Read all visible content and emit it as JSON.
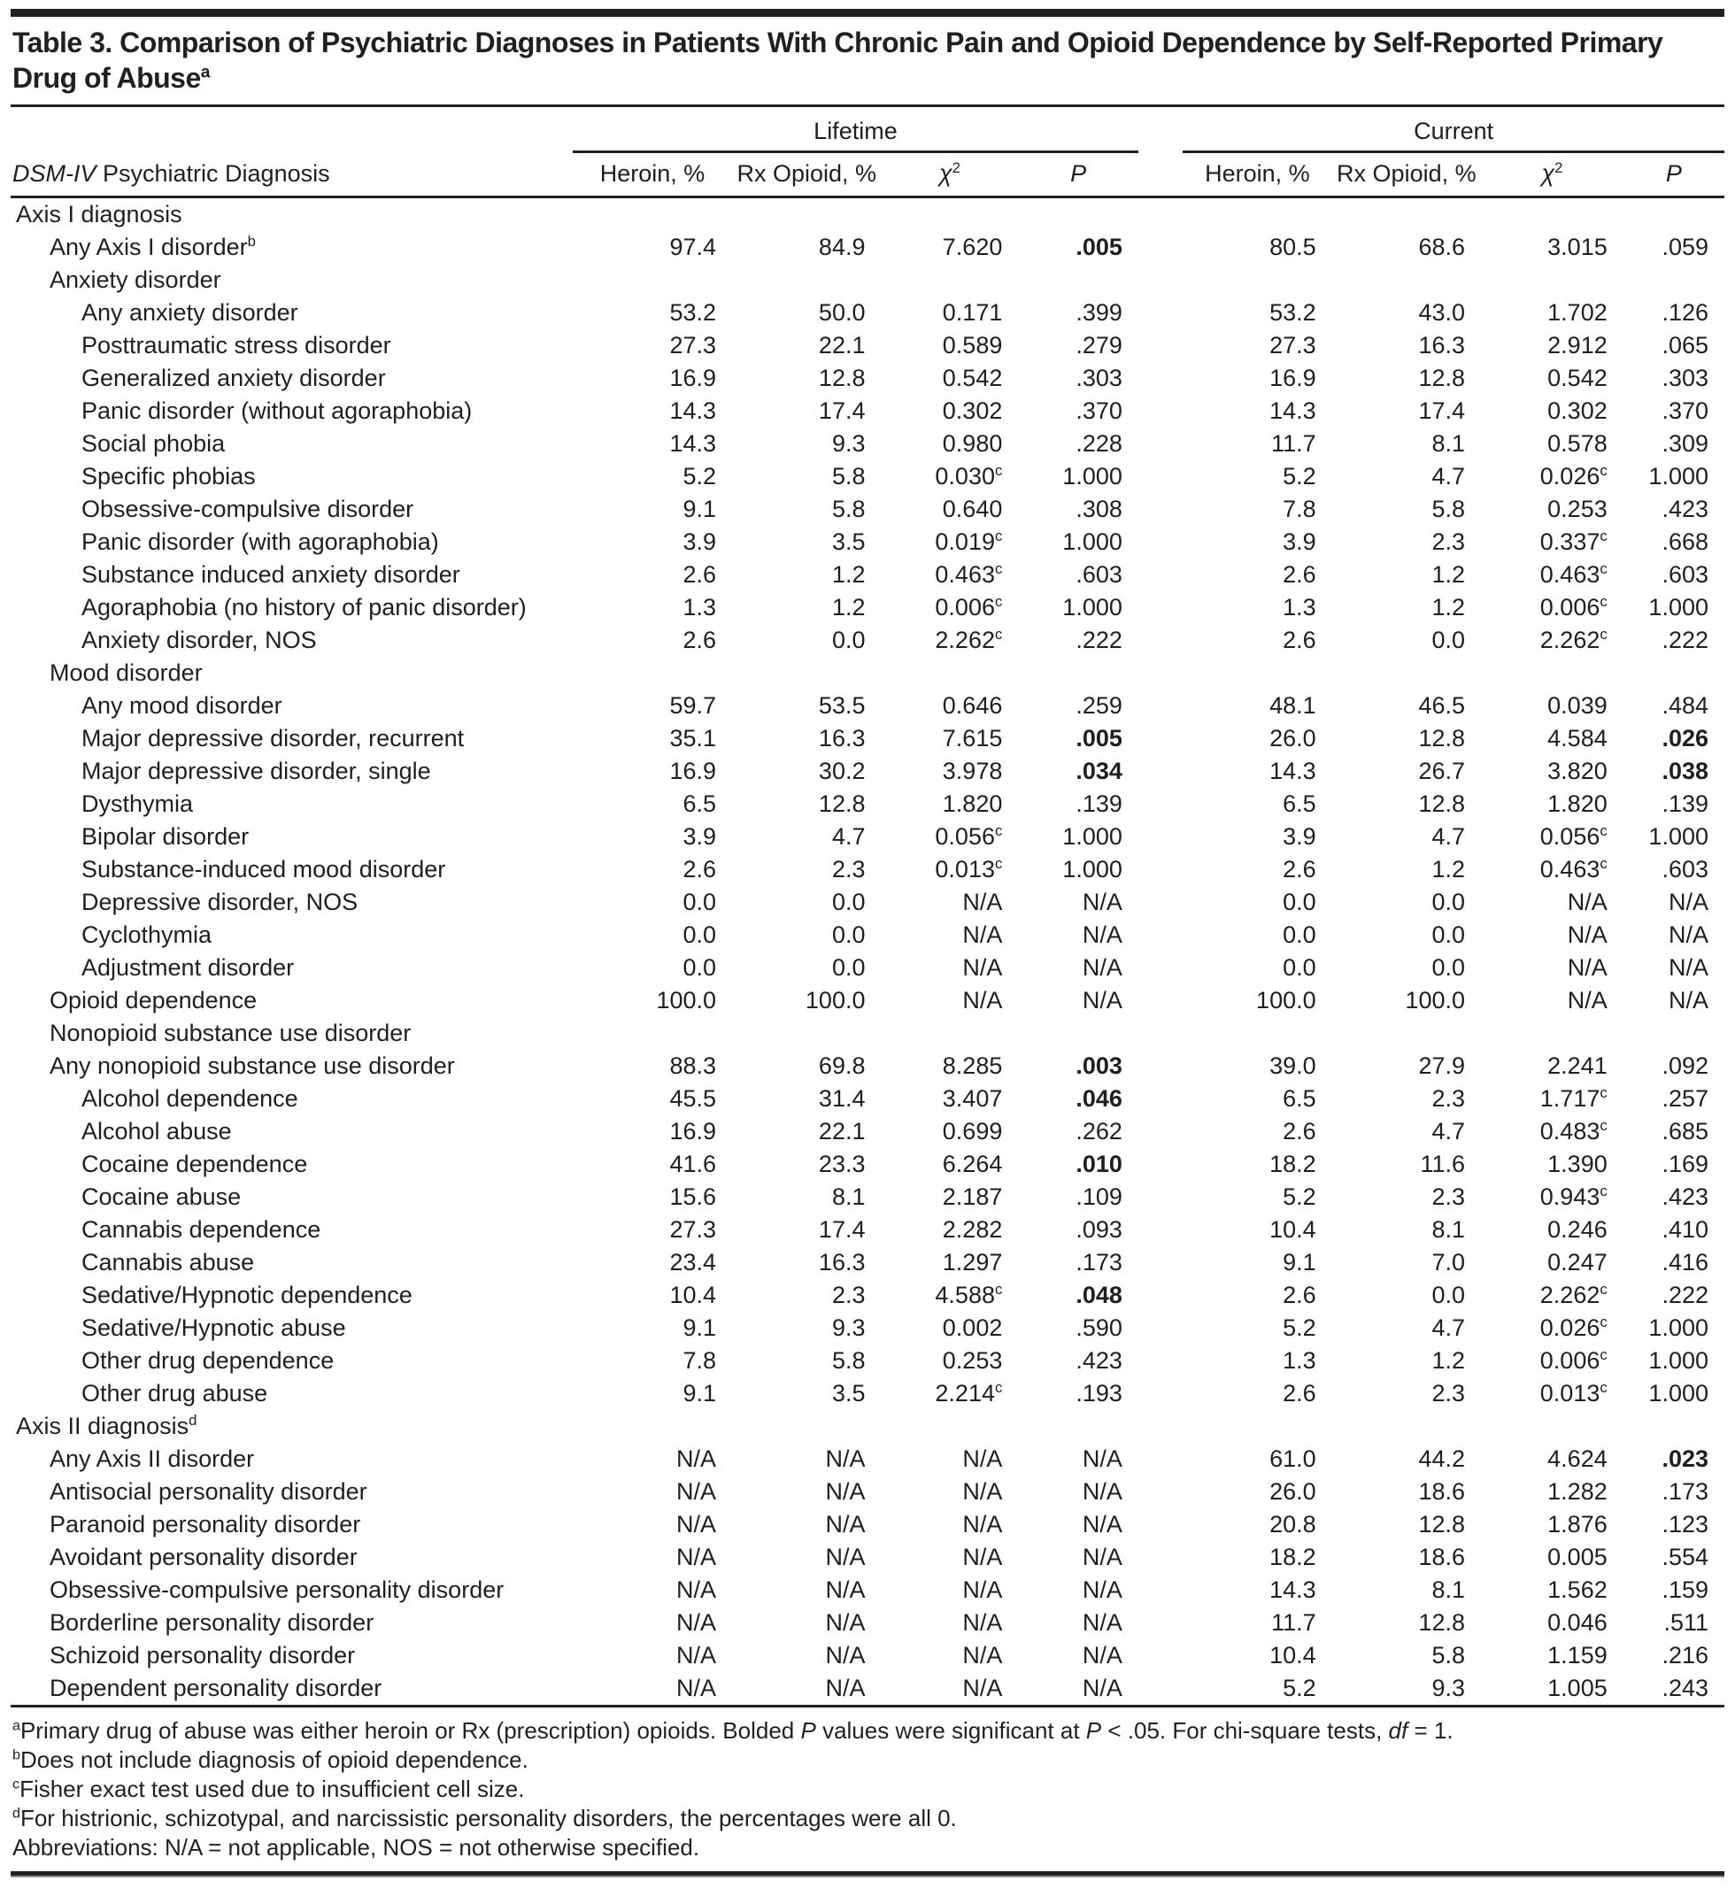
{
  "title": "Table 3. Comparison of Psychiatric Diagnoses in Patients With Chronic Pain and Opioid Dependence by Self-Reported Primary Drug of Abuse^a^",
  "header": {
    "diagnosis_col": "*DSM-IV* Psychiatric Diagnosis",
    "groups": [
      {
        "label": "Lifetime"
      },
      {
        "label": "Current"
      }
    ],
    "subcolumns": [
      "Heroin, %",
      "Rx Opioid, %",
      "*χ*^2^",
      "*P*"
    ]
  },
  "rows": [
    {
      "label": "Axis I diagnosis",
      "indent": 0,
      "cells": [
        "",
        "",
        "",
        "",
        "",
        "",
        "",
        ""
      ]
    },
    {
      "label": "Any Axis I disorder^b^",
      "indent": 1,
      "cells": [
        "97.4",
        "84.9",
        "7.620",
        "**.005**",
        "80.5",
        "68.6",
        "3.015",
        ".059"
      ]
    },
    {
      "label": "Anxiety disorder",
      "indent": 1,
      "cells": [
        "",
        "",
        "",
        "",
        "",
        "",
        "",
        ""
      ]
    },
    {
      "label": "Any anxiety disorder",
      "indent": 2,
      "cells": [
        "53.2",
        "50.0",
        "0.171",
        ".399",
        "53.2",
        "43.0",
        "1.702",
        ".126"
      ]
    },
    {
      "label": "Posttraumatic stress disorder",
      "indent": 2,
      "cells": [
        "27.3",
        "22.1",
        "0.589",
        ".279",
        "27.3",
        "16.3",
        "2.912",
        ".065"
      ]
    },
    {
      "label": "Generalized anxiety disorder",
      "indent": 2,
      "cells": [
        "16.9",
        "12.8",
        "0.542",
        ".303",
        "16.9",
        "12.8",
        "0.542",
        ".303"
      ]
    },
    {
      "label": "Panic disorder (without agoraphobia)",
      "indent": 2,
      "cells": [
        "14.3",
        "17.4",
        "0.302",
        ".370",
        "14.3",
        "17.4",
        "0.302",
        ".370"
      ]
    },
    {
      "label": "Social phobia",
      "indent": 2,
      "cells": [
        "14.3",
        "9.3",
        "0.980",
        ".228",
        "11.7",
        "8.1",
        "0.578",
        ".309"
      ]
    },
    {
      "label": "Specific phobias",
      "indent": 2,
      "cells": [
        "5.2",
        "5.8",
        "0.030^c^",
        "1.000",
        "5.2",
        "4.7",
        "0.026^c^",
        "1.000"
      ]
    },
    {
      "label": "Obsessive-compulsive disorder",
      "indent": 2,
      "cells": [
        "9.1",
        "5.8",
        "0.640",
        ".308",
        "7.8",
        "5.8",
        "0.253",
        ".423"
      ]
    },
    {
      "label": "Panic disorder (with agoraphobia)",
      "indent": 2,
      "cells": [
        "3.9",
        "3.5",
        "0.019^c^",
        "1.000",
        "3.9",
        "2.3",
        "0.337^c^",
        ".668"
      ]
    },
    {
      "label": "Substance induced anxiety disorder",
      "indent": 2,
      "cells": [
        "2.6",
        "1.2",
        "0.463^c^",
        ".603",
        "2.6",
        "1.2",
        "0.463^c^",
        ".603"
      ]
    },
    {
      "label": "Agoraphobia (no history of panic disorder)",
      "indent": 2,
      "cells": [
        "1.3",
        "1.2",
        "0.006^c^",
        "1.000",
        "1.3",
        "1.2",
        "0.006^c^",
        "1.000"
      ]
    },
    {
      "label": "Anxiety disorder, NOS",
      "indent": 2,
      "cells": [
        "2.6",
        "0.0",
        "2.262^c^",
        ".222",
        "2.6",
        "0.0",
        "2.262^c^",
        ".222"
      ]
    },
    {
      "label": "Mood disorder",
      "indent": 1,
      "cells": [
        "",
        "",
        "",
        "",
        "",
        "",
        "",
        ""
      ]
    },
    {
      "label": "Any mood disorder",
      "indent": 2,
      "cells": [
        "59.7",
        "53.5",
        "0.646",
        ".259",
        "48.1",
        "46.5",
        "0.039",
        ".484"
      ]
    },
    {
      "label": "Major depressive disorder, recurrent",
      "indent": 2,
      "cells": [
        "35.1",
        "16.3",
        "7.615",
        "**.005**",
        "26.0",
        "12.8",
        "4.584",
        "**.026**"
      ]
    },
    {
      "label": "Major depressive disorder, single",
      "indent": 2,
      "cells": [
        "16.9",
        "30.2",
        "3.978",
        "**.034**",
        "14.3",
        "26.7",
        "3.820",
        "**.038**"
      ]
    },
    {
      "label": "Dysthymia",
      "indent": 2,
      "cells": [
        "6.5",
        "12.8",
        "1.820",
        ".139",
        "6.5",
        "12.8",
        "1.820",
        ".139"
      ]
    },
    {
      "label": "Bipolar disorder",
      "indent": 2,
      "cells": [
        "3.9",
        "4.7",
        "0.056^c^",
        "1.000",
        "3.9",
        "4.7",
        "0.056^c^",
        "1.000"
      ]
    },
    {
      "label": "Substance-induced mood disorder",
      "indent": 2,
      "cells": [
        "2.6",
        "2.3",
        "0.013^c^",
        "1.000",
        "2.6",
        "1.2",
        "0.463^c^",
        ".603"
      ]
    },
    {
      "label": "Depressive disorder, NOS",
      "indent": 2,
      "cells": [
        "0.0",
        "0.0",
        "N/A",
        "N/A",
        "0.0",
        "0.0",
        "N/A",
        "N/A"
      ]
    },
    {
      "label": "Cyclothymia",
      "indent": 2,
      "cells": [
        "0.0",
        "0.0",
        "N/A",
        "N/A",
        "0.0",
        "0.0",
        "N/A",
        "N/A"
      ]
    },
    {
      "label": "Adjustment disorder",
      "indent": 2,
      "cells": [
        "0.0",
        "0.0",
        "N/A",
        "N/A",
        "0.0",
        "0.0",
        "N/A",
        "N/A"
      ]
    },
    {
      "label": "Opioid dependence",
      "indent": 1,
      "cells": [
        "100.0",
        "100.0",
        "N/A",
        "N/A",
        "100.0",
        "100.0",
        "N/A",
        "N/A"
      ]
    },
    {
      "label": "Nonopioid substance use disorder",
      "indent": 1,
      "cells": [
        "",
        "",
        "",
        "",
        "",
        "",
        "",
        ""
      ]
    },
    {
      "label": "Any nonopioid substance use disorder",
      "indent": 1,
      "cells": [
        "88.3",
        "69.8",
        "8.285",
        "**.003**",
        "39.0",
        "27.9",
        "2.241",
        ".092"
      ]
    },
    {
      "label": "Alcohol dependence",
      "indent": 2,
      "cells": [
        "45.5",
        "31.4",
        "3.407",
        "**.046**",
        "6.5",
        "2.3",
        "1.717^c^",
        ".257"
      ]
    },
    {
      "label": "Alcohol abuse",
      "indent": 2,
      "cells": [
        "16.9",
        "22.1",
        "0.699",
        ".262",
        "2.6",
        "4.7",
        "0.483^c^",
        ".685"
      ]
    },
    {
      "label": "Cocaine dependence",
      "indent": 2,
      "cells": [
        "41.6",
        "23.3",
        "6.264",
        "**.010**",
        "18.2",
        "11.6",
        "1.390",
        ".169"
      ]
    },
    {
      "label": "Cocaine abuse",
      "indent": 2,
      "cells": [
        "15.6",
        "8.1",
        "2.187",
        ".109",
        "5.2",
        "2.3",
        "0.943^c^",
        ".423"
      ]
    },
    {
      "label": "Cannabis dependence",
      "indent": 2,
      "cells": [
        "27.3",
        "17.4",
        "2.282",
        ".093",
        "10.4",
        "8.1",
        "0.246",
        ".410"
      ]
    },
    {
      "label": "Cannabis abuse",
      "indent": 2,
      "cells": [
        "23.4",
        "16.3",
        "1.297",
        ".173",
        "9.1",
        "7.0",
        "0.247",
        ".416"
      ]
    },
    {
      "label": "Sedative/Hypnotic dependence",
      "indent": 2,
      "cells": [
        "10.4",
        "2.3",
        "4.588^c^",
        "**.048**",
        "2.6",
        "0.0",
        "2.262^c^",
        ".222"
      ]
    },
    {
      "label": "Sedative/Hypnotic abuse",
      "indent": 2,
      "cells": [
        "9.1",
        "9.3",
        "0.002",
        ".590",
        "5.2",
        "4.7",
        "0.026^c^",
        "1.000"
      ]
    },
    {
      "label": "Other drug dependence",
      "indent": 2,
      "cells": [
        "7.8",
        "5.8",
        "0.253",
        ".423",
        "1.3",
        "1.2",
        "0.006^c^",
        "1.000"
      ]
    },
    {
      "label": "Other drug abuse",
      "indent": 2,
      "cells": [
        "9.1",
        "3.5",
        "2.214^c^",
        ".193",
        "2.6",
        "2.3",
        "0.013^c^",
        "1.000"
      ]
    },
    {
      "label": "Axis II diagnosis^d^",
      "indent": 0,
      "cells": [
        "",
        "",
        "",
        "",
        "",
        "",
        "",
        ""
      ]
    },
    {
      "label": "Any Axis II disorder",
      "indent": 1,
      "cells": [
        "N/A",
        "N/A",
        "N/A",
        "N/A",
        "61.0",
        "44.2",
        "4.624",
        "**.023**"
      ]
    },
    {
      "label": "Antisocial personality disorder",
      "indent": 1,
      "cells": [
        "N/A",
        "N/A",
        "N/A",
        "N/A",
        "26.0",
        "18.6",
        "1.282",
        ".173"
      ]
    },
    {
      "label": "Paranoid personality disorder",
      "indent": 1,
      "cells": [
        "N/A",
        "N/A",
        "N/A",
        "N/A",
        "20.8",
        "12.8",
        "1.876",
        ".123"
      ]
    },
    {
      "label": "Avoidant personality disorder",
      "indent": 1,
      "cells": [
        "N/A",
        "N/A",
        "N/A",
        "N/A",
        "18.2",
        "18.6",
        "0.005",
        ".554"
      ]
    },
    {
      "label": "Obsessive-compulsive personality disorder",
      "indent": 1,
      "cells": [
        "N/A",
        "N/A",
        "N/A",
        "N/A",
        "14.3",
        "8.1",
        "1.562",
        ".159"
      ]
    },
    {
      "label": "Borderline personality disorder",
      "indent": 1,
      "cells": [
        "N/A",
        "N/A",
        "N/A",
        "N/A",
        "11.7",
        "12.8",
        "0.046",
        ".511"
      ]
    },
    {
      "label": "Schizoid personality disorder",
      "indent": 1,
      "cells": [
        "N/A",
        "N/A",
        "N/A",
        "N/A",
        "10.4",
        "5.8",
        "1.159",
        ".216"
      ]
    },
    {
      "label": "Dependent personality disorder",
      "indent": 1,
      "cells": [
        "N/A",
        "N/A",
        "N/A",
        "N/A",
        "5.2",
        "9.3",
        "1.005",
        ".243"
      ]
    }
  ],
  "footnotes": [
    "^a^Primary drug of abuse was either heroin or Rx (prescription) opioids. Bolded *P* values were significant at *P* < .05. For chi-square tests, *df* = 1.",
    "^b^Does not include diagnosis of opioid dependence.",
    "^c^Fisher exact test used due to insufficient cell size.",
    "^d^For histrionic, schizotypal, and narcissistic personality disorders, the percentages were all 0.",
    "Abbreviations: N/A = not applicable, NOS = not otherwise specified."
  ],
  "colors": {
    "text": "#231f20",
    "rule": "#231f20",
    "background": "#ffffff"
  }
}
